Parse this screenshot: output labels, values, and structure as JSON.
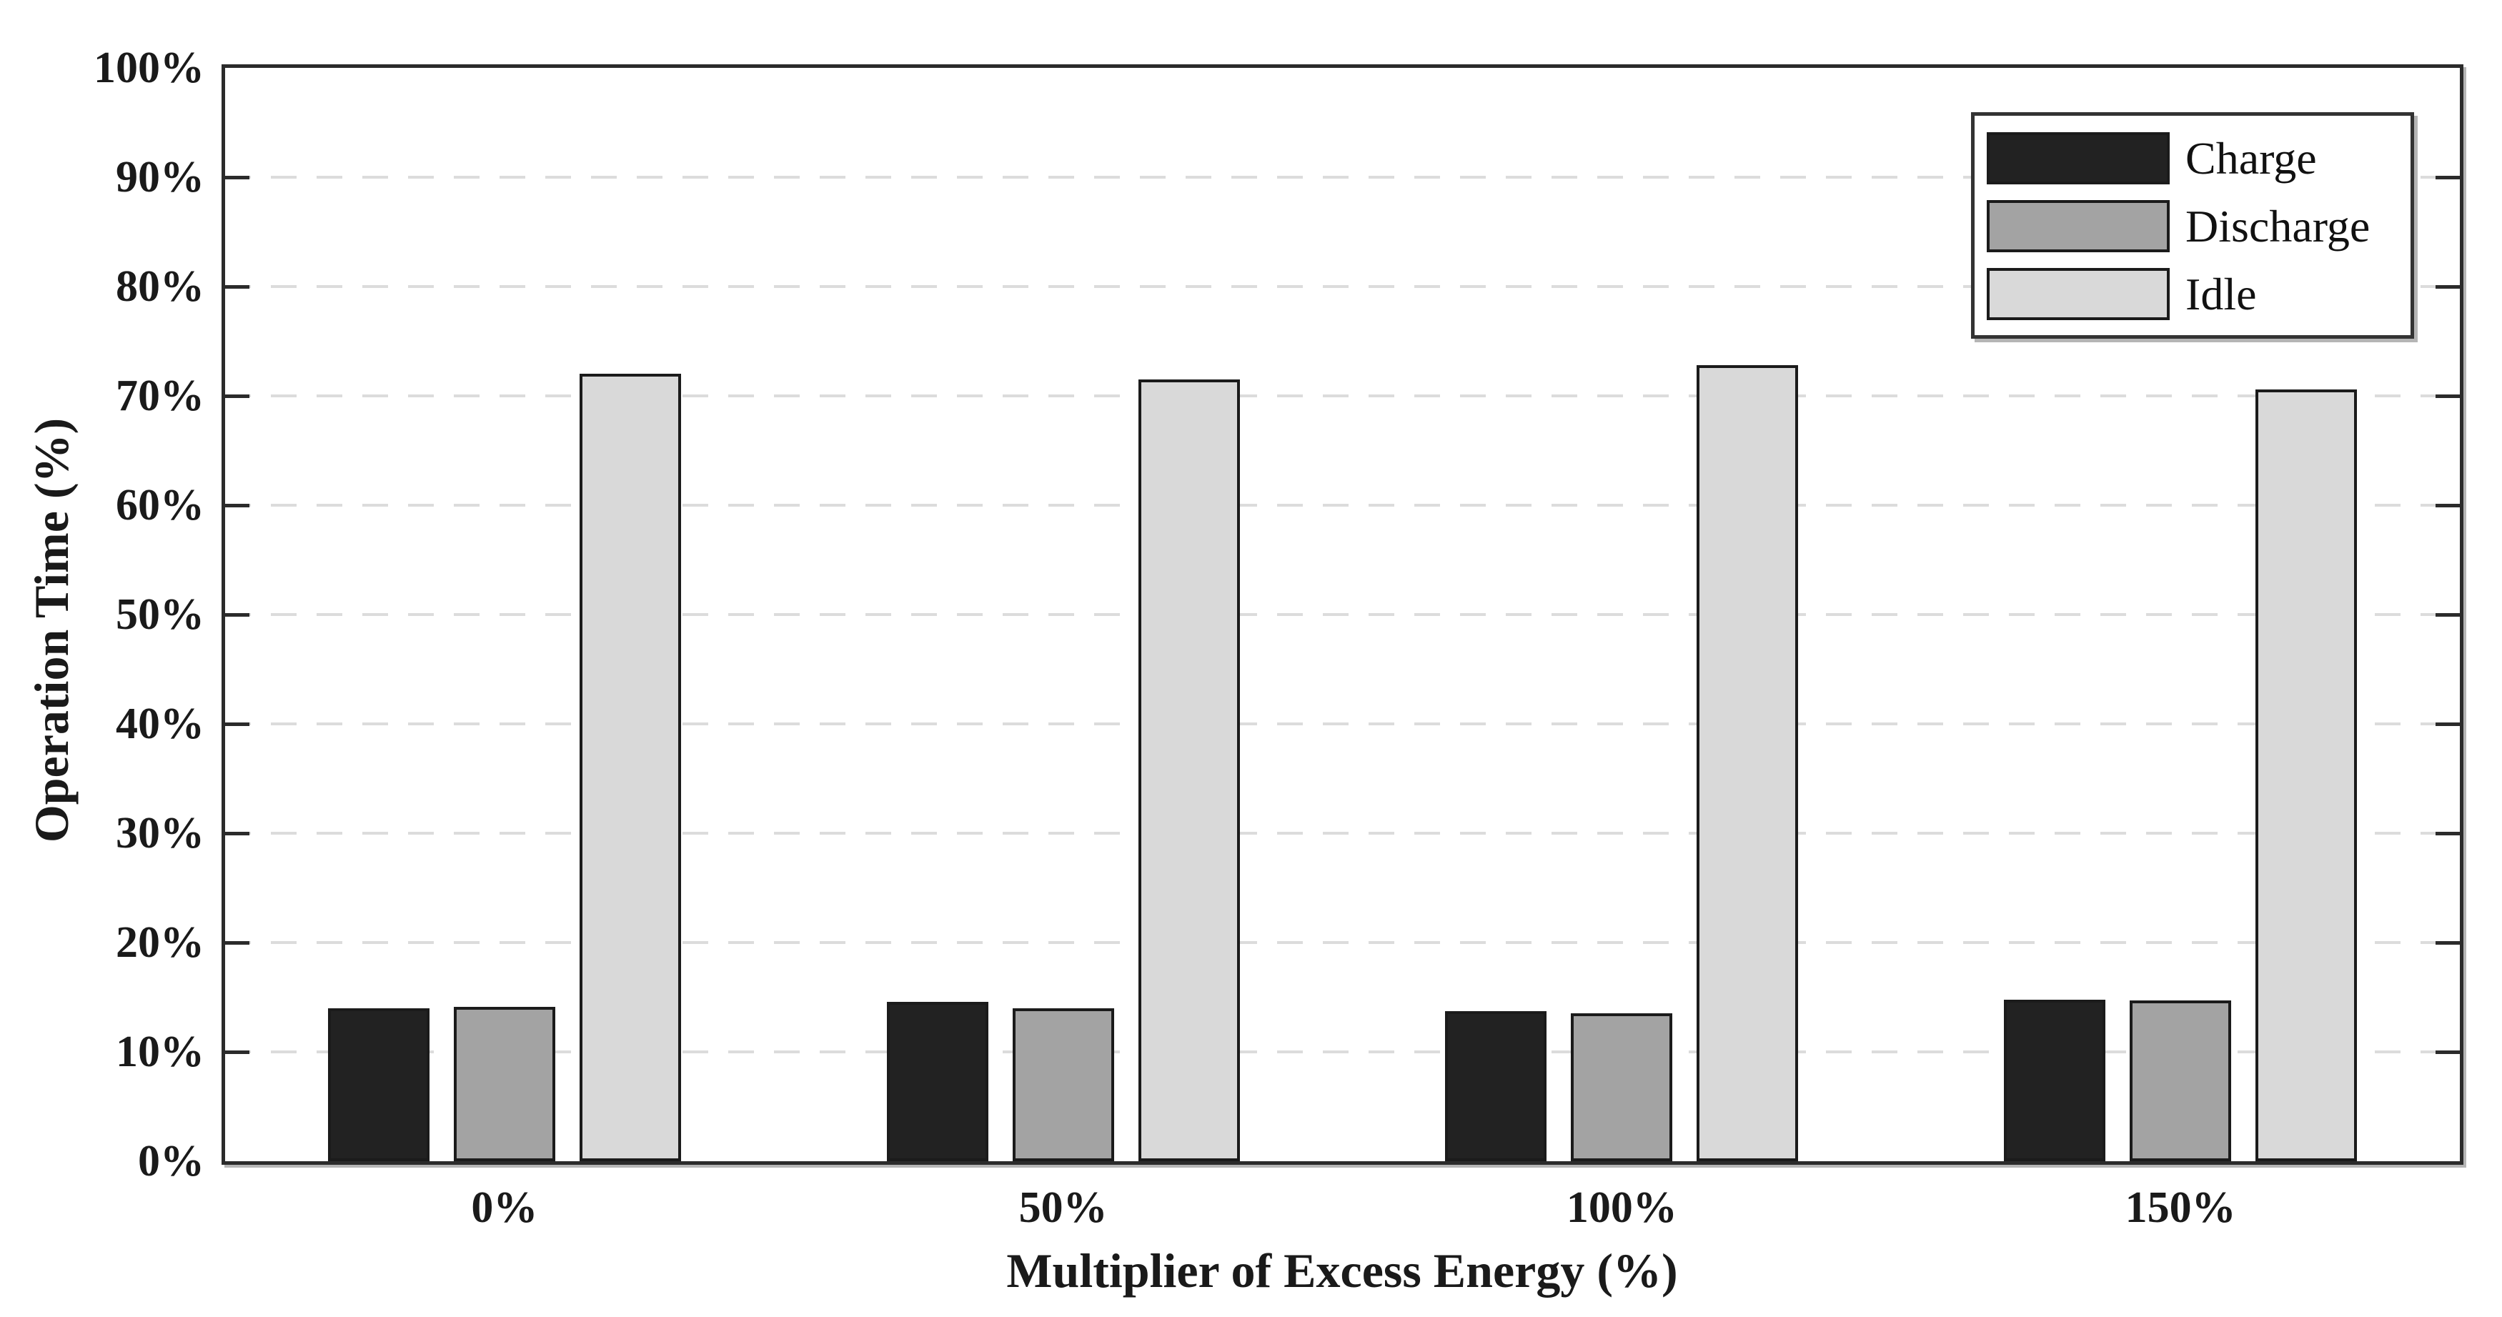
{
  "figure": {
    "background": "#ffffff",
    "axis_color": "#2b2b2b",
    "grid_color": "#dcdcdc",
    "bar_edge_color": "#1b1b1b"
  },
  "chart_data": {
    "type": "bar",
    "title": "",
    "xlabel": "Multiplier of Excess Energy (%)",
    "ylabel": "Operation Time (%)",
    "categories": [
      "0%",
      "50%",
      "100%",
      "150%"
    ],
    "series": [
      {
        "name": "Charge",
        "color": "#222222",
        "values": [
          14.0,
          14.6,
          13.7,
          14.8
        ]
      },
      {
        "name": "Discharge",
        "color": "#a3a3a3",
        "values": [
          14.1,
          14.0,
          13.5,
          14.7
        ]
      },
      {
        "name": "Idle",
        "color": "#d9d9d9",
        "values": [
          72.0,
          71.5,
          72.8,
          70.6
        ]
      }
    ],
    "ylim": [
      0,
      100
    ],
    "ytick_step": 10,
    "ytick_labels": [
      "0%",
      "10%",
      "20%",
      "30%",
      "40%",
      "50%",
      "60%",
      "70%",
      "80%",
      "90%",
      "100%"
    ],
    "grid": {
      "axis": "y",
      "style": "dashed",
      "color": "#dcdcdc"
    },
    "legend": {
      "position": "top-right",
      "entries": [
        "Charge",
        "Discharge",
        "Idle"
      ]
    }
  }
}
